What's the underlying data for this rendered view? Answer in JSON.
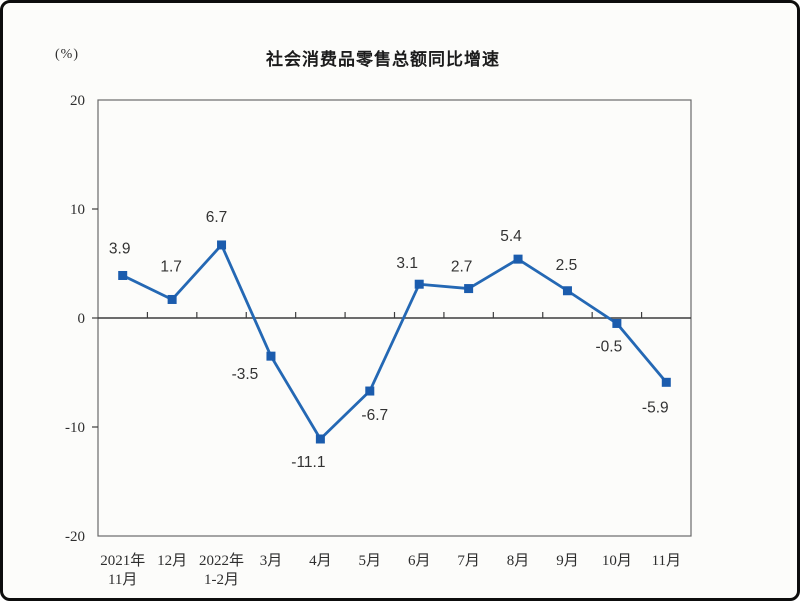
{
  "chart": {
    "title": "社会消费品零售总额同比增速",
    "unit_label": "(%)"
  },
  "chart_data": {
    "type": "line",
    "title": "社会消费品零售总额同比增速",
    "y_unit": "(%)",
    "categories": [
      [
        "2021年",
        "11月"
      ],
      [
        "12月"
      ],
      [
        "2022年",
        "1-2月"
      ],
      [
        "3月"
      ],
      [
        "4月"
      ],
      [
        "5月"
      ],
      [
        "6月"
      ],
      [
        "7月"
      ],
      [
        "8月"
      ],
      [
        "9月"
      ],
      [
        "10月"
      ],
      [
        "11月"
      ]
    ],
    "values": [
      3.9,
      1.7,
      6.7,
      -3.5,
      -11.1,
      -6.7,
      3.1,
      2.7,
      5.4,
      2.5,
      -0.5,
      -5.9
    ],
    "point_labels": [
      "3.9",
      "1.7",
      "6.7",
      "-3.5",
      "-11.1",
      "-6.7",
      "3.1",
      "2.7",
      "5.4",
      "2.5",
      "-0.5",
      "-5.9"
    ],
    "ylim": [
      -20,
      20
    ],
    "yticks": [
      20,
      10,
      0,
      -10,
      -20
    ],
    "grid": false,
    "legend": false,
    "line_color": "#2468B4",
    "marker_color": "#1B5CAD",
    "axis_color": "#6a6a6a",
    "zero_line_color": "#3d3d3d"
  }
}
